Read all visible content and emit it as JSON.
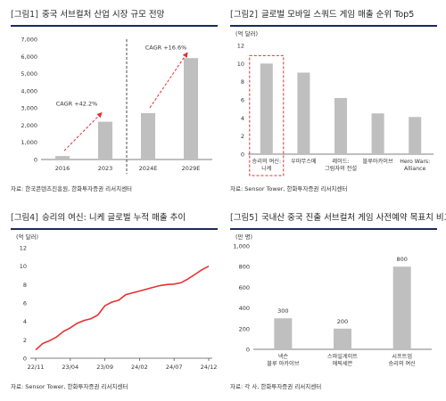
{
  "panels": [
    {
      "tag": "[그림1]",
      "title": "중국 서브컬처 산업 시장 규모 전망",
      "unit": "",
      "source": "자료: 한국콘텐츠진흥원, 한화투자증권 리서치센터"
    },
    {
      "tag": "[그림2]",
      "title": "글로벌 모바일 스쿼드 게임 매출 순위 Top5",
      "unit": "(억 달러)",
      "source": "자료: Sensor Tower, 한화투자증권 리서치센터"
    },
    {
      "tag": "[그림4]",
      "title": "승리의 여신: 니케 글로벌 누적 매출 추이",
      "unit": "(억 달러)",
      "source": "자료: Sensor Tower, 한화투자증권 리서치센터"
    },
    {
      "tag": "[그림5]",
      "title": "국내산 중국 진출 서브컬처 게임 사전예약 목표치 비교",
      "unit": "(만 명)",
      "source": "자료: 각 사, 한화투자증권 리서치센터"
    }
  ],
  "chart_data": [
    {
      "type": "bar",
      "categories": [
        "2016",
        "2023",
        "2024E",
        "2029E"
      ],
      "values": [
        200,
        2200,
        2700,
        5900
      ],
      "ylim": [
        0,
        7000
      ],
      "yticks": [
        "0",
        "1,000",
        "2,000",
        "3,000",
        "4,000",
        "5,000",
        "6,000",
        "7,000"
      ],
      "annotations": [
        "CAGR +42.2%",
        "CAGR +16.6%"
      ],
      "bar_color": "#bfbfbf",
      "accent_color": "#e03030"
    },
    {
      "type": "bar",
      "categories": [
        [
          "승리의 여신:",
          "니케"
        ],
        [
          "우마무스메"
        ],
        [
          "레이드:",
          "그림자의 전설"
        ],
        [
          "블루아카이브"
        ],
        [
          "Hero Wars:",
          "Alliance"
        ]
      ],
      "values": [
        10,
        9,
        6.2,
        4.5,
        4.1
      ],
      "ylim": [
        0,
        12
      ],
      "yticks": [
        "0",
        "2",
        "4",
        "6",
        "8",
        "10",
        "12"
      ],
      "highlight_index": 0,
      "bar_color": "#bfbfbf",
      "accent_color": "#e03030"
    },
    {
      "type": "line",
      "x": [
        "22/11",
        "22/12",
        "23/01",
        "23/02",
        "23/03",
        "23/04",
        "23/05",
        "23/06",
        "23/07",
        "23/08",
        "23/09",
        "23/10",
        "23/11",
        "23/12",
        "24/01",
        "24/02",
        "24/03",
        "24/04",
        "24/05",
        "24/06",
        "24/07",
        "24/08",
        "24/09",
        "24/10",
        "24/11",
        "24/12"
      ],
      "xticks": [
        "22/11",
        "23/04",
        "23/09",
        "24/02",
        "24/07",
        "24/12"
      ],
      "values": [
        0.9,
        1.6,
        1.9,
        2.3,
        2.9,
        3.3,
        3.8,
        4.1,
        4.3,
        4.7,
        5.7,
        6.1,
        6.3,
        6.9,
        7.1,
        7.3,
        7.5,
        7.7,
        7.9,
        8.0,
        8.05,
        8.2,
        8.6,
        9.1,
        9.6,
        10.0
      ],
      "ylim": [
        0,
        12
      ],
      "yticks": [
        "0",
        "2",
        "4",
        "6",
        "8",
        "10",
        "12"
      ],
      "line_color": "#e83030"
    },
    {
      "type": "bar",
      "categories": [
        [
          "넥슨",
          "블루 아카이브"
        ],
        [
          "스마일게이트",
          "에픽세븐"
        ],
        [
          "시프트업",
          "승리의 여신"
        ]
      ],
      "values": [
        300,
        200,
        800
      ],
      "data_labels": [
        "300",
        "200",
        "800"
      ],
      "ylim": [
        0,
        1000
      ],
      "yticks": [
        "0",
        "200",
        "400",
        "600",
        "800",
        "1,000"
      ],
      "bar_color": "#bfbfbf"
    }
  ]
}
